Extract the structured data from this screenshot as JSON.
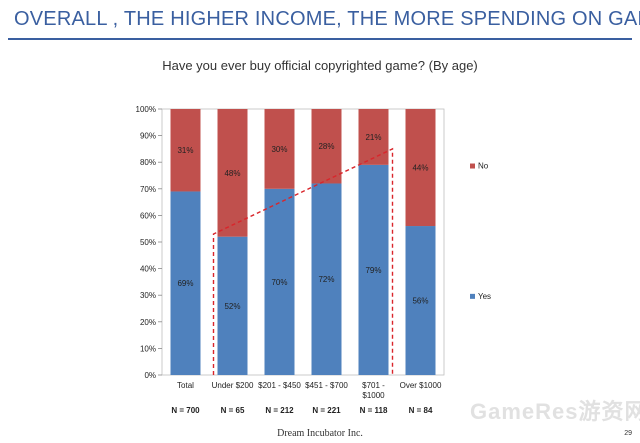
{
  "header": {
    "title": "OVERALL , THE HIGHER INCOME, THE MORE SPENDING ON GAME"
  },
  "chart_data": {
    "type": "bar",
    "stacked": true,
    "percent_stacked": true,
    "title": "Have you ever buy official copyrighted game? (By age)",
    "categories": [
      "Total",
      "Under $200",
      "$201 - $450",
      "$451 - $700",
      "$701 - $1000",
      "Over $1000"
    ],
    "sample_sizes": [
      "N = 700",
      "N = 65",
      "N = 212",
      "N = 221",
      "N = 118",
      "N = 84"
    ],
    "series": [
      {
        "name": "Yes",
        "values": [
          69,
          52,
          70,
          72,
          79,
          56
        ],
        "labels": [
          "69%",
          "52%",
          "70%",
          "72%",
          "79%",
          "56%"
        ],
        "color": "#4f81bd"
      },
      {
        "name": "No",
        "values": [
          31,
          48,
          30,
          28,
          21,
          44
        ],
        "labels": [
          "31%",
          "48%",
          "30%",
          "28%",
          "21%",
          "44%"
        ],
        "color": "#c0504d"
      }
    ],
    "yticks": [
      "0%",
      "10%",
      "20%",
      "30%",
      "40%",
      "50%",
      "60%",
      "70%",
      "80%",
      "90%",
      "100%"
    ],
    "ylim": [
      0,
      100
    ],
    "legend_position": "right",
    "annotation": {
      "type": "dashed-trend",
      "color": "#d9252b",
      "from_category": "Under $200",
      "to_category": "$701 - $1000"
    }
  },
  "footer": {
    "text": "Dream Incubator Inc.",
    "page_number": "29"
  },
  "watermark": {
    "text": "GameRes游资网"
  },
  "colors": {
    "accent": "#3a5fa0",
    "yes": "#4f81bd",
    "no": "#c0504d",
    "trend": "#d9252b"
  }
}
